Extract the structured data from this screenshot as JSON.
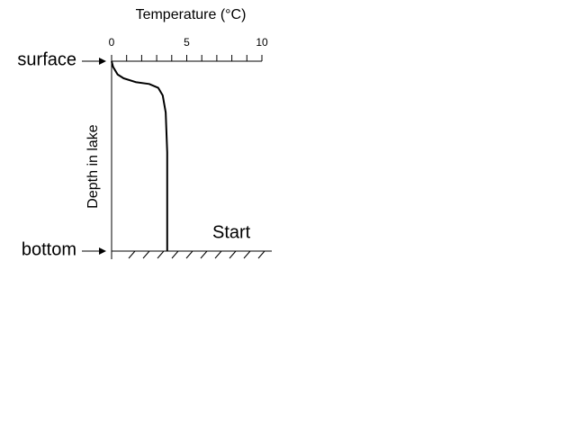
{
  "chart_data": {
    "type": "line",
    "xlabel": "Temperature (°C)",
    "ylabel": "Depth in lake",
    "annotation": "Start",
    "xlim": [
      0,
      10
    ],
    "xticks": [
      0,
      5,
      10
    ],
    "xminorticks": [
      0,
      1,
      2,
      3,
      4,
      5,
      6,
      7,
      8,
      9,
      10
    ],
    "ylim": [
      0,
      1
    ],
    "yticks": [
      {
        "value": 0,
        "label": "surface"
      },
      {
        "value": 1,
        "label": "bottom"
      }
    ],
    "y_inverted": true,
    "x": [
      0,
      0.1,
      0.4,
      0.8,
      1.6,
      2.5,
      3.1,
      3.4,
      3.6,
      3.7,
      3.7
    ],
    "series": [
      {
        "color": "#000000",
        "values": [
          0,
          0.03,
          0.07,
          0.09,
          0.11,
          0.12,
          0.14,
          0.18,
          0.27,
          0.48,
          1.0
        ]
      }
    ]
  }
}
